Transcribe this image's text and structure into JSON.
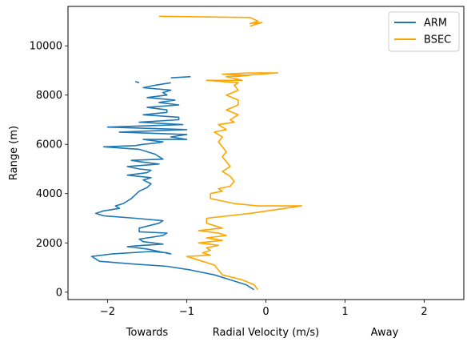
{
  "chart_data": {
    "type": "line",
    "xlabel": "Radial Velocity (m/s)",
    "ylabel": "Range (m)",
    "xlim": [
      -2.5,
      2.5
    ],
    "ylim": [
      -300,
      11600
    ],
    "grid": false,
    "legend_position": "top-right",
    "x_ticks": [
      -2,
      -1,
      0,
      1,
      2
    ],
    "x_tick_labels": [
      "−2",
      "−1",
      "0",
      "1",
      "2"
    ],
    "y_ticks": [
      0,
      2000,
      4000,
      6000,
      8000,
      10000
    ],
    "y_tick_labels": [
      "0",
      "2000",
      "4000",
      "6000",
      "8000",
      "10000"
    ],
    "annotations": [
      {
        "text": "Towards",
        "x": -1.5
      },
      {
        "text": "Away",
        "x": 1.5
      }
    ],
    "series": [
      {
        "name": "ARM",
        "color": "#1f77b4",
        "x": [
          -0.15,
          -0.25,
          -0.45,
          -0.65,
          -0.95,
          -1.25,
          -1.7,
          -2.1,
          -2.2,
          -1.95,
          -1.45,
          -1.25,
          -1.2,
          -1.5,
          -1.75,
          -1.55,
          -1.3,
          -1.55,
          -1.6,
          -1.3,
          -1.25,
          -1.6,
          -1.6,
          -1.35,
          -1.3,
          -1.65,
          -2.05,
          -2.15,
          -2.05,
          -1.85,
          -1.9,
          -1.8,
          -1.75,
          -1.7,
          -1.65,
          -1.6,
          -1.5,
          -1.45,
          -1.55,
          -1.45,
          -1.75,
          -1.5,
          -1.45,
          -1.6,
          -1.75,
          -1.35,
          -1.6,
          -1.7,
          -1.3,
          -1.4,
          -1.6,
          -2.05,
          -1.65,
          -1.55,
          -1.4,
          -1.3,
          -1.55,
          -1.0,
          -1.2,
          -1.0,
          -1.85,
          -1.0,
          -2.0,
          -1.05,
          -1.6,
          -1.1,
          -1.1,
          -1.55,
          -1.25,
          -1.25,
          -1.5,
          -1.1,
          -1.35,
          -1.15,
          -1.5,
          -1.25,
          -1.3,
          -1.2,
          -1.55,
          -1.4,
          -1.2,
          null,
          -1.65,
          -1.6,
          null,
          -1.2,
          -0.95
        ],
        "y": [
          100,
          300,
          500,
          700,
          900,
          1050,
          1150,
          1250,
          1450,
          1550,
          1650,
          1600,
          1550,
          1750,
          1850,
          1900,
          1950,
          2050,
          2150,
          2300,
          2400,
          2450,
          2600,
          2800,
          2900,
          3000,
          3100,
          3200,
          3300,
          3400,
          3500,
          3600,
          3700,
          3800,
          3950,
          4100,
          4250,
          4400,
          4550,
          4650,
          4750,
          4850,
          4950,
          5000,
          5100,
          5200,
          5300,
          5350,
          5400,
          5600,
          5800,
          5900,
          5950,
          6000,
          6050,
          6100,
          6200,
          6200,
          6300,
          6400,
          6500,
          6600,
          6700,
          6800,
          6900,
          7000,
          7100,
          7200,
          7300,
          7400,
          7500,
          7600,
          7700,
          7800,
          7900,
          8000,
          8100,
          8200,
          8300,
          8400,
          8500,
          null,
          8550,
          8500,
          null,
          8700,
          8750
        ]
      },
      {
        "name": "BSEC",
        "color": "#ffa500",
        "x": [
          -0.1,
          -0.15,
          -0.3,
          -0.55,
          -0.6,
          -0.65,
          -0.8,
          -1.0,
          -0.7,
          -0.8,
          -0.7,
          -0.75,
          -0.6,
          -0.85,
          -0.55,
          -0.75,
          -0.5,
          -0.6,
          -0.85,
          -0.55,
          -0.75,
          -0.75,
          -0.2,
          0.45,
          -0.1,
          -0.4,
          -0.55,
          -0.7,
          -0.7,
          -0.55,
          -0.6,
          -0.45,
          -0.4,
          -0.45,
          -0.55,
          -0.45,
          -0.5,
          -0.55,
          -0.5,
          -0.55,
          -0.6,
          -0.55,
          -0.65,
          -0.5,
          -0.55,
          -0.6,
          -0.4,
          -0.45,
          -0.35,
          -0.5,
          -0.35,
          -0.35,
          -0.5,
          -0.35,
          -0.4,
          -0.35,
          -0.75,
          -0.3,
          -0.5,
          0.15,
          -0.2,
          -0.55,
          -0.2,
          -0.4,
          null,
          -1.35,
          -0.2,
          -0.1,
          -0.2,
          -0.05,
          -0.2
        ],
        "y": [
          100,
          300,
          500,
          700,
          900,
          1100,
          1250,
          1450,
          1500,
          1600,
          1700,
          1800,
          1900,
          2000,
          2100,
          2200,
          2300,
          2400,
          2500,
          2600,
          2800,
          3000,
          3200,
          3500,
          3500,
          3600,
          3700,
          3800,
          4000,
          4100,
          4200,
          4300,
          4500,
          4700,
          4900,
          5100,
          5300,
          5500,
          5700,
          5900,
          6100,
          6300,
          6500,
          6600,
          6700,
          6800,
          6900,
          7000,
          7200,
          7400,
          7600,
          7800,
          8000,
          8200,
          8400,
          8500,
          8600,
          8600,
          8750,
          8900,
          8900,
          8850,
          8800,
          8750,
          null,
          11200,
          11150,
          11000,
          10900,
          10950,
          10800
        ]
      }
    ]
  }
}
